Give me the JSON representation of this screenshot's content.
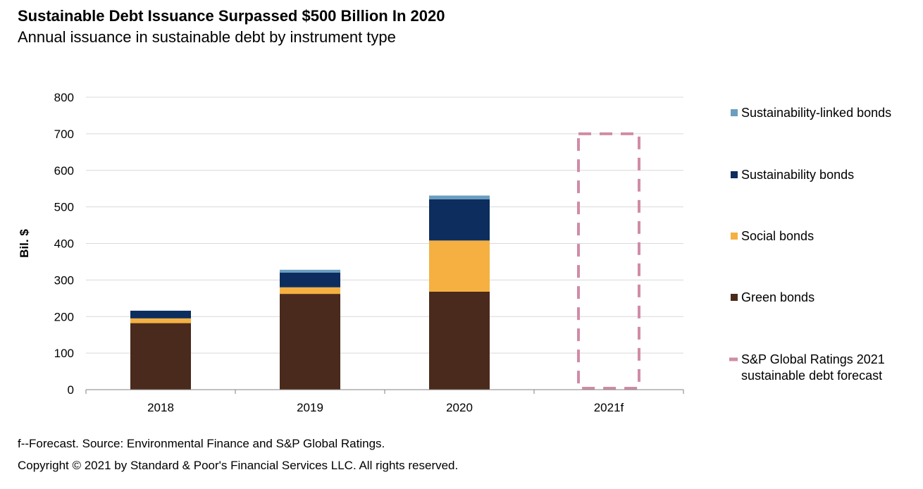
{
  "header": {
    "title": "Sustainable Debt Issuance Surpassed $500 Billion In 2020",
    "subtitle": "Annual issuance in sustainable debt by instrument type"
  },
  "footer": {
    "footnote": "f--Forecast. Source: Environmental Finance and S&P Global Ratings.",
    "copyright": "Copyright © 2021 by Standard & Poor's Financial Services LLC. All rights reserved."
  },
  "chart_data": {
    "type": "bar",
    "stacked": true,
    "title": "Sustainable Debt Issuance Surpassed $500 Billion In 2020",
    "subtitle": "Annual issuance in sustainable debt by instrument type",
    "xlabel": "",
    "ylabel": "Bil. $",
    "ylim": [
      0,
      800
    ],
    "yticks": [
      0,
      100,
      200,
      300,
      400,
      500,
      600,
      700,
      800
    ],
    "grid": true,
    "legend_position": "right",
    "categories": [
      "2018",
      "2019",
      "2020",
      "2021f"
    ],
    "series": [
      {
        "name": "Green bonds",
        "color": "#4a2a1c",
        "values": [
          182,
          262,
          268,
          0
        ]
      },
      {
        "name": "Social bonds",
        "color": "#f5b041",
        "values": [
          13,
          18,
          140,
          0
        ]
      },
      {
        "name": "Sustainability bonds",
        "color": "#0d2d5e",
        "values": [
          21,
          40,
          113,
          0
        ]
      },
      {
        "name": "Sustainability-linked bonds",
        "color": "#6a9ec0",
        "values": [
          0,
          8,
          10,
          0
        ]
      }
    ],
    "forecast": {
      "name": "S&P Global Ratings 2021 sustainable debt forecast",
      "name_lines": [
        "S&P Global Ratings 2021",
        "sustainable debt forecast"
      ],
      "category": "2021f",
      "value": 700,
      "color": "#d08ca6",
      "style": "dashed"
    },
    "legend_order": [
      "Sustainability-linked bonds",
      "Sustainability bonds",
      "Social bonds",
      "Green bonds",
      "S&P Global Ratings 2021 sustainable debt forecast"
    ]
  }
}
